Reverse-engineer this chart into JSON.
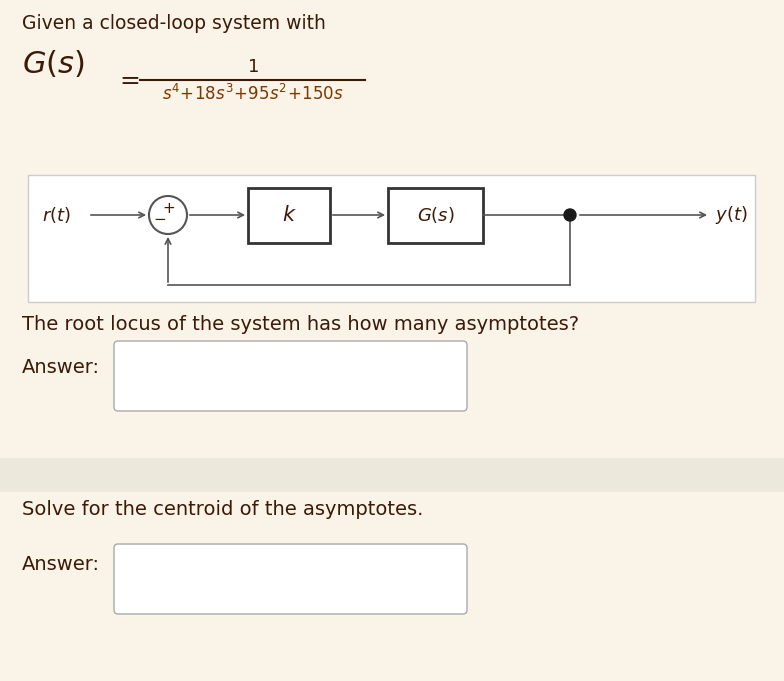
{
  "bg_color": "#faf3e8",
  "divider_color": "#ede8dc",
  "text_color": "#3b1a08",
  "denom_color": "#7B3800",
  "title_text": "Given a closed-loop system with",
  "question1": "The root locus of the system has how many asymptotes?",
  "answer_label": "Answer:",
  "question2": "Solve for the centroid of the asymptotes.",
  "block_diagram_bg": "#ffffff",
  "answer_box_color": "#ffffff",
  "answer_box_border": "#aaaaaa",
  "diagram_line_color": "#555555",
  "diagram_border_color": "#333333",
  "title_fontsize": 13.5,
  "formula_gs_fontsize": 22,
  "formula_num_fontsize": 13,
  "formula_denom_fontsize": 12,
  "question_fontsize": 14,
  "answer_label_fontsize": 14,
  "rt_fontsize": 13,
  "k_fontsize": 15,
  "Gs_fontsize": 13
}
